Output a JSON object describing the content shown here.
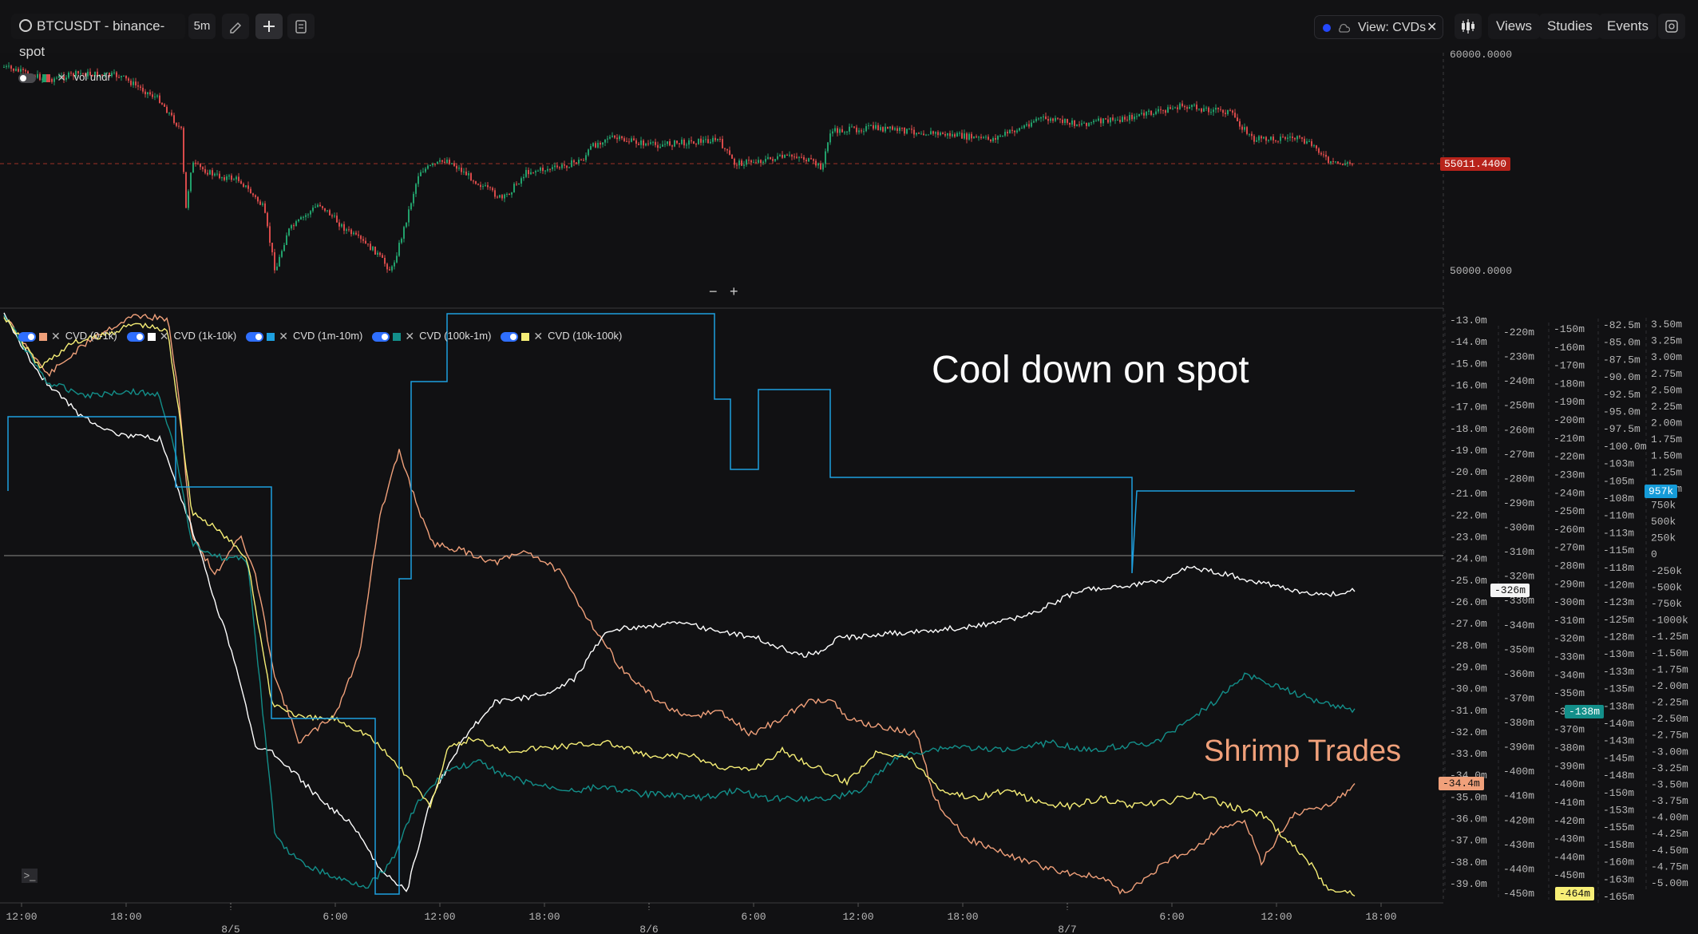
{
  "toolbar": {
    "symbol": "BTCUSDT - binance-spot",
    "timeframe": "5m",
    "view_label": "View: CVDs",
    "views": "Views",
    "studies": "Studies",
    "events": "Events"
  },
  "price_pane": {
    "legend_label": "vol undr",
    "y_ticks": [
      "60000.0000",
      "50000.0000"
    ],
    "last_price": "55011.4400",
    "zoom_minus": "−",
    "zoom_plus": "+"
  },
  "cvd_pane": {
    "legend": [
      {
        "label": "CVD (0-1k)",
        "color": "#f0a07a",
        "enabled": true
      },
      {
        "label": "CVD (1k-10k)",
        "color": "#ffffff",
        "enabled": true
      },
      {
        "label": "CVD (1m-10m)",
        "color": "#1ea0e0",
        "enabled": true
      },
      {
        "label": "CVD (100k-1m)",
        "color": "#138f8a",
        "enabled": true
      },
      {
        "label": "CVD (10k-100k)",
        "color": "#f6ee76",
        "enabled": true
      }
    ],
    "axis1": [
      "-13.0m",
      "-14.0m",
      "-15.0m",
      "-16.0m",
      "-17.0m",
      "-18.0m",
      "-19.0m",
      "-20.0m",
      "-21.0m",
      "-22.0m",
      "-23.0m",
      "-24.0m",
      "-25.0m",
      "-26.0m",
      "-27.0m",
      "-28.0m",
      "-29.0m",
      "-30.0m",
      "-31.0m",
      "-32.0m",
      "-33.0m",
      "-34.0m",
      "-35.0m",
      "-36.0m",
      "-37.0m",
      "-38.0m",
      "-39.0m"
    ],
    "axis2": [
      "-220m",
      "-230m",
      "-240m",
      "-250m",
      "-260m",
      "-270m",
      "-280m",
      "-290m",
      "-300m",
      "-310m",
      "-320m",
      "-330m",
      "-340m",
      "-350m",
      "-360m",
      "-370m",
      "-380m",
      "-390m",
      "-400m",
      "-410m",
      "-420m",
      "-430m",
      "-440m",
      "-450m"
    ],
    "axis3": [
      "-150m",
      "-160m",
      "-170m",
      "-180m",
      "-190m",
      "-200m",
      "-210m",
      "-220m",
      "-230m",
      "-240m",
      "-250m",
      "-260m",
      "-270m",
      "-280m",
      "-290m",
      "-300m",
      "-310m",
      "-320m",
      "-330m",
      "-340m",
      "-350m",
      "-360m",
      "-370m",
      "-380m",
      "-390m",
      "-400m",
      "-410m",
      "-420m",
      "-430m",
      "-440m",
      "-450m",
      "-460m"
    ],
    "axis4": [
      "-82.5m",
      "-85.0m",
      "-87.5m",
      "-90.0m",
      "-92.5m",
      "-95.0m",
      "-97.5m",
      "-100.0m",
      "-103m",
      "-105m",
      "-108m",
      "-110m",
      "-113m",
      "-115m",
      "-118m",
      "-120m",
      "-123m",
      "-125m",
      "-128m",
      "-130m",
      "-133m",
      "-135m",
      "-138m",
      "-140m",
      "-143m",
      "-145m",
      "-148m",
      "-150m",
      "-153m",
      "-155m",
      "-158m",
      "-160m",
      "-163m",
      "-165m"
    ],
    "axis5": [
      "3.50m",
      "3.25m",
      "3.00m",
      "2.75m",
      "2.50m",
      "2.25m",
      "2.00m",
      "1.75m",
      "1.50m",
      "1.25m",
      "1.00m",
      "750k",
      "500k",
      "250k",
      "0",
      "-250k",
      "-500k",
      "-750k",
      "-1000k",
      "-1.25m",
      "-1.50m",
      "-1.75m",
      "-2.00m",
      "-2.25m",
      "-2.50m",
      "-2.75m",
      "-3.00m",
      "-3.25m",
      "-3.50m",
      "-3.75m",
      "-4.00m",
      "-4.25m",
      "-4.50m",
      "-4.75m",
      "-5.00m"
    ],
    "tags": {
      "white": "-326m",
      "blue": "957k",
      "teal": "-138m",
      "orange": "-34.4m",
      "yellow": "-464m"
    }
  },
  "annotations": {
    "cool_down": "Cool down on spot",
    "shrimp": "Shrimp Trades"
  },
  "x_axis": {
    "times": [
      "12:00",
      "18:00",
      "6:00",
      "12:00",
      "18:00",
      "6:00",
      "12:00",
      "18:00",
      "6:00",
      "12:00",
      "18:00"
    ],
    "dates": [
      "8/5",
      "8/6",
      "8/7"
    ]
  },
  "colors": {
    "background": "#111113",
    "up_candle": "#22a06b",
    "down_candle": "#d84a4a",
    "last_price_tag": "#c0261e",
    "accent": "#2f6fff"
  }
}
